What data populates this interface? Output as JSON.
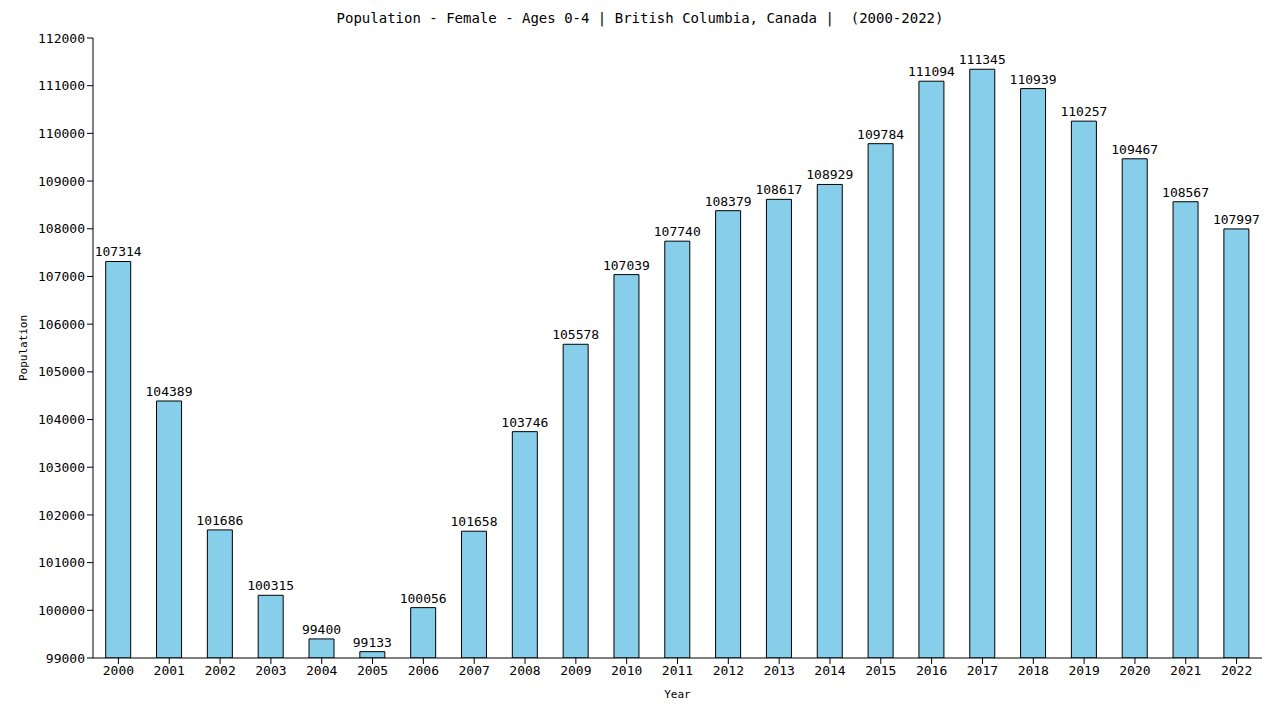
{
  "chart_data": {
    "type": "bar",
    "title": "Population - Female - Ages 0-4 | British Columbia, Canada |  (2000-2022)",
    "x_label": "Year",
    "y_label": "Population",
    "categories": [
      "2000",
      "2001",
      "2002",
      "2003",
      "2004",
      "2005",
      "2006",
      "2007",
      "2008",
      "2009",
      "2010",
      "2011",
      "2012",
      "2013",
      "2014",
      "2015",
      "2016",
      "2017",
      "2018",
      "2019",
      "2020",
      "2021",
      "2022"
    ],
    "values": [
      107314,
      104389,
      101686,
      100315,
      99400,
      99133,
      100056,
      101658,
      103746,
      105578,
      107039,
      107740,
      108379,
      108617,
      108929,
      109784,
      111094,
      111345,
      110939,
      110257,
      109467,
      108567,
      107997
    ],
    "color": "#87ceeb",
    "ylim": [
      99000,
      112000
    ],
    "yticks": [
      99000,
      100000,
      101000,
      102000,
      103000,
      104000,
      105000,
      106000,
      107000,
      108000,
      109000,
      110000,
      111000,
      112000
    ],
    "grid": false,
    "data_labels": true
  }
}
